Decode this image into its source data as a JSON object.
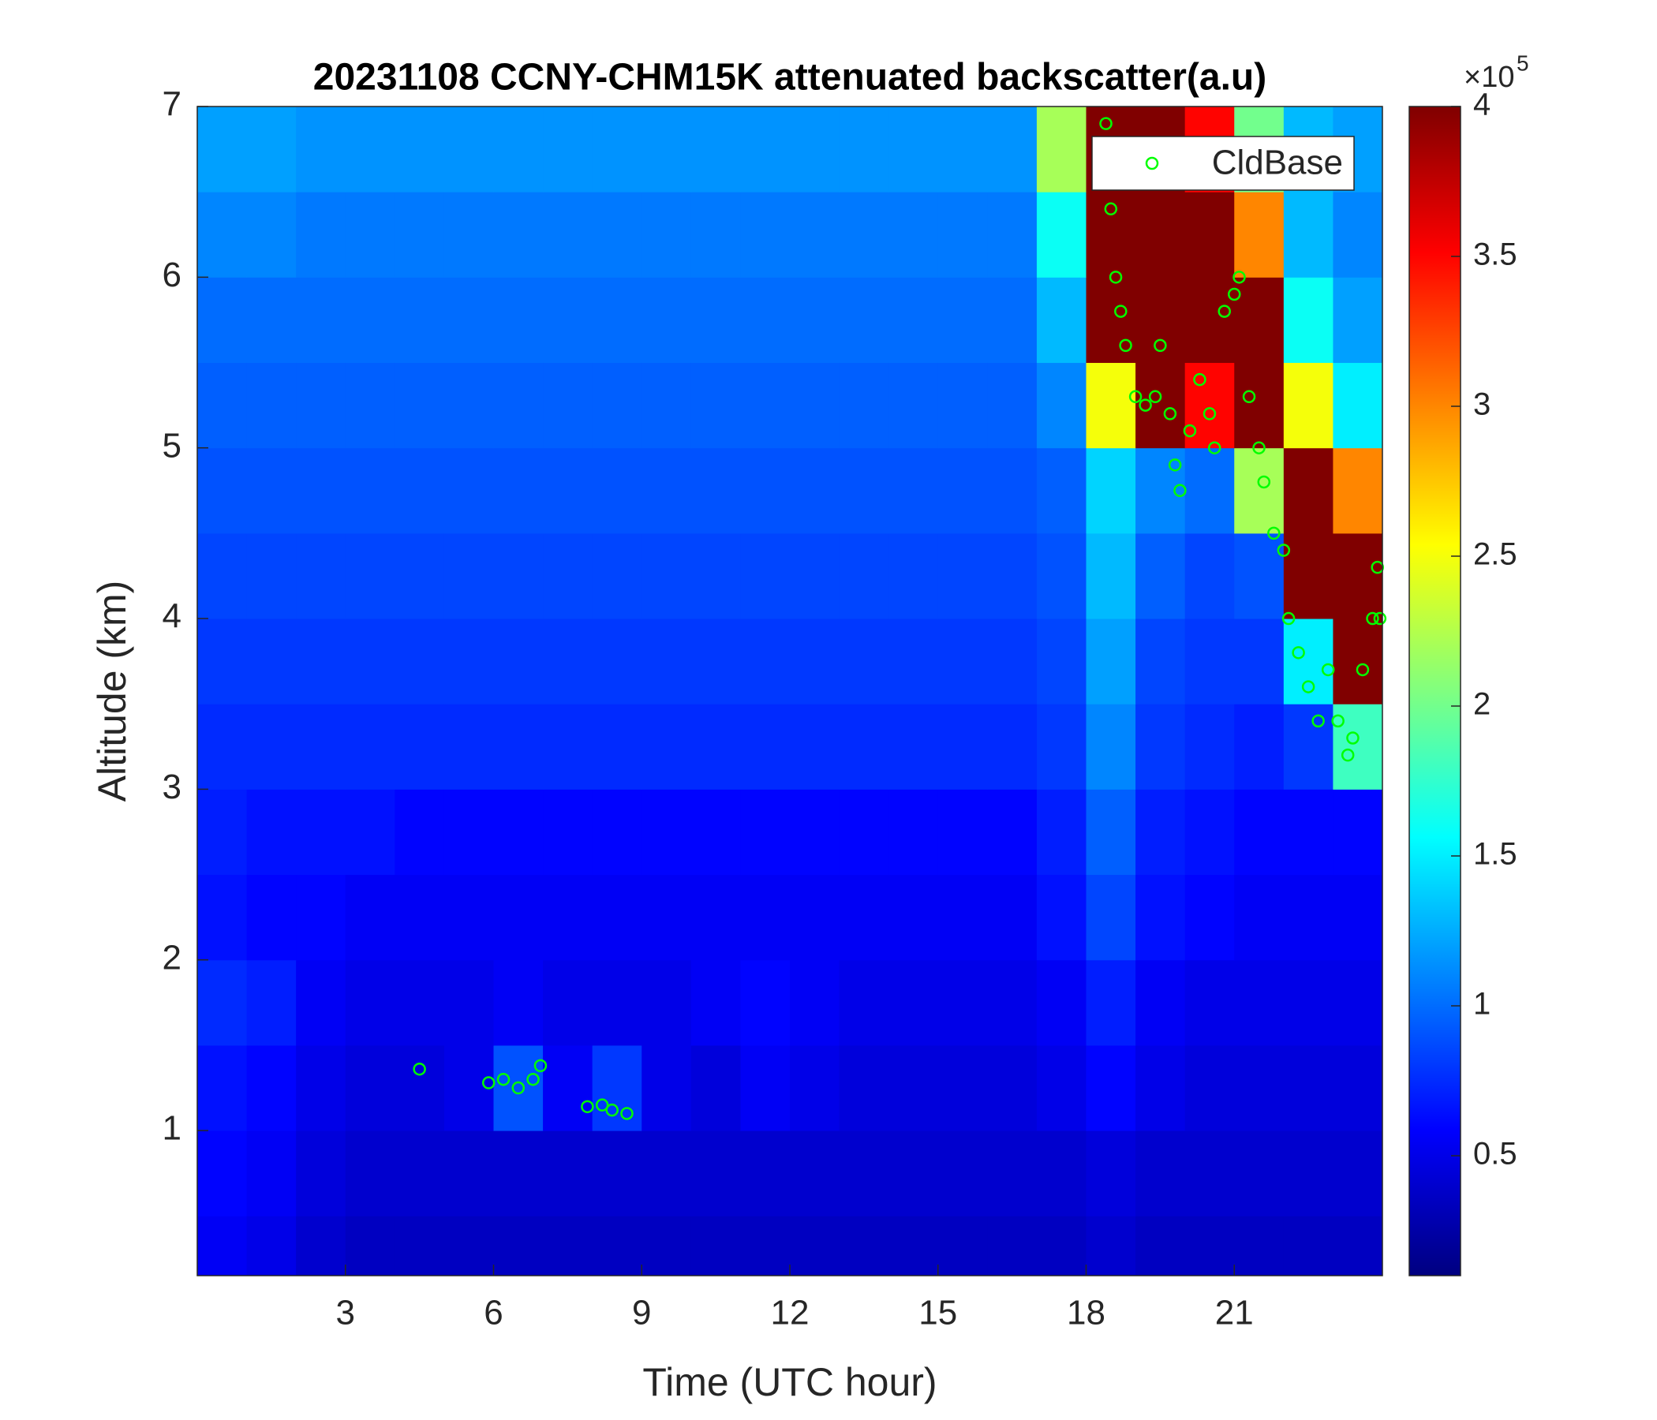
{
  "chart_data": {
    "type": "heatmap",
    "title": "20231108 CCNY-CHM15K attenuated backscatter(a.u)",
    "x_label": "Time (UTC hour)",
    "y_label": "Altitude (km)",
    "xlim": [
      0,
      24
    ],
    "ylim": [
      0.15,
      7
    ],
    "xticks": [
      3,
      6,
      9,
      12,
      15,
      18,
      21
    ],
    "yticks": [
      1,
      2,
      3,
      4,
      5,
      6,
      7
    ],
    "colormap": "jet",
    "clim": [
      10000,
      400000
    ],
    "colorbar_ticks": [
      {
        "value": 50000,
        "label": "0.5"
      },
      {
        "value": 100000,
        "label": "1"
      },
      {
        "value": 150000,
        "label": "1.5"
      },
      {
        "value": 200000,
        "label": "2"
      },
      {
        "value": 250000,
        "label": "2.5"
      },
      {
        "value": 300000,
        "label": "3"
      },
      {
        "value": 350000,
        "label": "3.5"
      },
      {
        "value": 400000,
        "label": "4"
      }
    ],
    "colorbar_multiplier": {
      "base": "×10",
      "exponent": "5"
    },
    "x_bins": [
      0,
      1,
      2,
      3,
      4,
      5,
      6,
      7,
      8,
      9,
      10,
      11,
      12,
      13,
      14,
      15,
      16,
      17,
      18,
      19,
      20,
      21,
      22,
      23,
      24
    ],
    "y_bins": [
      0.15,
      0.5,
      1,
      1.5,
      2,
      2.5,
      3,
      3.5,
      4,
      4.5,
      5,
      5.5,
      6,
      6.5,
      7
    ],
    "z": [
      [
        55000,
        50000,
        40000,
        35000,
        35000,
        35000,
        35000,
        35000,
        35000,
        35000,
        35000,
        35000,
        35000,
        35000,
        35000,
        35000,
        35000,
        35000,
        40000,
        35000,
        35000,
        35000,
        35000,
        35000
      ],
      [
        60000,
        55000,
        45000,
        40000,
        40000,
        40000,
        40000,
        40000,
        40000,
        40000,
        40000,
        40000,
        40000,
        40000,
        40000,
        40000,
        40000,
        40000,
        45000,
        40000,
        40000,
        40000,
        40000,
        40000
      ],
      [
        65000,
        60000,
        50000,
        45000,
        45000,
        50000,
        90000,
        55000,
        80000,
        50000,
        45000,
        55000,
        50000,
        45000,
        45000,
        45000,
        45000,
        50000,
        60000,
        50000,
        45000,
        45000,
        45000,
        45000
      ],
      [
        75000,
        70000,
        55000,
        50000,
        50000,
        50000,
        55000,
        50000,
        50000,
        50000,
        55000,
        60000,
        55000,
        50000,
        50000,
        50000,
        50000,
        55000,
        70000,
        55000,
        50000,
        50000,
        50000,
        50000
      ],
      [
        65000,
        60000,
        60000,
        55000,
        55000,
        55000,
        55000,
        55000,
        55000,
        55000,
        55000,
        55000,
        55000,
        55000,
        55000,
        55000,
        55000,
        65000,
        85000,
        65000,
        60000,
        55000,
        55000,
        55000
      ],
      [
        70000,
        65000,
        65000,
        65000,
        60000,
        60000,
        60000,
        60000,
        60000,
        60000,
        60000,
        60000,
        60000,
        60000,
        60000,
        60000,
        60000,
        70000,
        95000,
        70000,
        65000,
        60000,
        60000,
        60000
      ],
      [
        75000,
        75000,
        75000,
        75000,
        75000,
        75000,
        75000,
        75000,
        75000,
        75000,
        75000,
        75000,
        75000,
        75000,
        75000,
        75000,
        75000,
        80000,
        110000,
        80000,
        75000,
        70000,
        80000,
        180000
      ],
      [
        80000,
        80000,
        80000,
        80000,
        80000,
        80000,
        80000,
        80000,
        80000,
        80000,
        80000,
        80000,
        80000,
        80000,
        80000,
        80000,
        80000,
        85000,
        120000,
        85000,
        80000,
        80000,
        150000,
        400000
      ],
      [
        85000,
        85000,
        85000,
        85000,
        85000,
        85000,
        85000,
        85000,
        85000,
        85000,
        85000,
        85000,
        85000,
        85000,
        85000,
        85000,
        85000,
        90000,
        130000,
        95000,
        85000,
        90000,
        400000,
        400000
      ],
      [
        90000,
        90000,
        90000,
        90000,
        90000,
        90000,
        90000,
        90000,
        90000,
        90000,
        90000,
        90000,
        90000,
        90000,
        90000,
        90000,
        90000,
        95000,
        140000,
        110000,
        100000,
        220000,
        400000,
        300000
      ],
      [
        95000,
        95000,
        95000,
        95000,
        95000,
        95000,
        95000,
        95000,
        95000,
        95000,
        95000,
        95000,
        95000,
        95000,
        95000,
        95000,
        95000,
        110000,
        250000,
        400000,
        350000,
        400000,
        250000,
        150000
      ],
      [
        100000,
        100000,
        100000,
        100000,
        100000,
        100000,
        100000,
        100000,
        100000,
        100000,
        100000,
        100000,
        100000,
        100000,
        100000,
        100000,
        100000,
        130000,
        400000,
        400000,
        400000,
        400000,
        160000,
        120000
      ],
      [
        110000,
        110000,
        105000,
        105000,
        105000,
        105000,
        105000,
        105000,
        105000,
        105000,
        105000,
        105000,
        105000,
        105000,
        105000,
        105000,
        105000,
        160000,
        400000,
        400000,
        400000,
        300000,
        130000,
        110000
      ],
      [
        120000,
        120000,
        115000,
        115000,
        115000,
        115000,
        115000,
        115000,
        115000,
        115000,
        115000,
        115000,
        115000,
        115000,
        115000,
        115000,
        115000,
        220000,
        400000,
        400000,
        350000,
        200000,
        130000,
        120000
      ]
    ],
    "legend": "upper right",
    "series": [
      {
        "name": "CldBase",
        "type": "scatter",
        "color": "#00ff00",
        "x": [
          4.5,
          5.9,
          6.2,
          6.5,
          6.8,
          6.95,
          7.9,
          8.2,
          8.4,
          8.7,
          18.4,
          18.5,
          18.6,
          18.7,
          18.8,
          19.0,
          19.2,
          19.4,
          19.5,
          19.7,
          19.8,
          19.9,
          20.1,
          20.3,
          20.5,
          20.6,
          20.8,
          21.0,
          21.1,
          21.3,
          21.5,
          21.6,
          21.8,
          22.0,
          22.1,
          22.3,
          22.5,
          22.7,
          22.9,
          23.1,
          23.3,
          23.4,
          23.6,
          23.8,
          23.9,
          23.95
        ],
        "y": [
          1.36,
          1.28,
          1.3,
          1.25,
          1.3,
          1.38,
          1.14,
          1.15,
          1.12,
          1.1,
          6.9,
          6.4,
          6.0,
          5.8,
          5.6,
          5.3,
          5.25,
          5.3,
          5.6,
          5.2,
          4.9,
          4.75,
          5.1,
          5.4,
          5.2,
          5.0,
          5.8,
          5.9,
          6.0,
          5.3,
          5.0,
          4.8,
          4.5,
          4.4,
          4.0,
          3.8,
          3.6,
          3.4,
          3.7,
          3.4,
          3.2,
          3.3,
          3.7,
          4.0,
          4.3,
          4.0
        ]
      }
    ]
  }
}
